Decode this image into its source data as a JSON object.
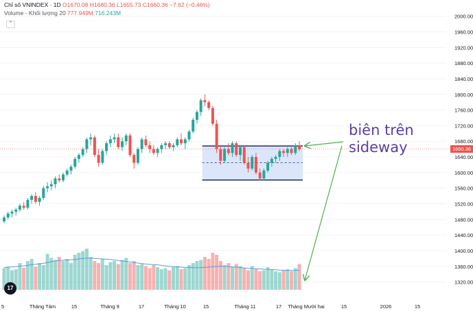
{
  "legend": {
    "symbol": "Chỉ số VNINDEX · 1D",
    "o": "O1670.08",
    "h": "H1680.36",
    "l": "L1655.73",
    "c": "C1660.36",
    "chg": "−7.62 (−0.46%)",
    "vol_label": "Volume - Khối lượng 20",
    "vol_value": "777.949M",
    "vol_ma": "716.243M"
  },
  "last_price": "1660.36",
  "annotation": {
    "line1": "biên trên",
    "line2": "sideway"
  },
  "colors": {
    "up": "#26a69a",
    "down": "#ef5350",
    "annotation": "#5b3fa3",
    "arrow": "#4caf50",
    "zone_fill": "#dbe6fb",
    "zone_border": "#1f2b6b",
    "ma": "#5b9bd5"
  },
  "chart_data": {
    "type": "candlestick",
    "price_axis": {
      "ticks": [
        1320,
        1360,
        1400,
        1440,
        1480,
        1520,
        1560,
        1600,
        1640,
        1680,
        1720,
        1760,
        1800,
        1840,
        1880,
        1920,
        1960,
        2000
      ]
    },
    "time_axis": {
      "labels": [
        "5",
        "Tháng Tám",
        "15",
        "Tháng 9",
        "17",
        "Tháng 10",
        "15",
        "Tháng 11",
        "17",
        "Tháng Mười hai",
        "15",
        "2026",
        "15"
      ]
    },
    "ylim": [
      1300,
      2010
    ],
    "zone": {
      "top": 1668,
      "bottom": 1581,
      "mid": 1625
    },
    "last_price": 1660.36,
    "candles": [
      [
        1475,
        1490,
        1470,
        1485
      ],
      [
        1485,
        1500,
        1480,
        1495
      ],
      [
        1495,
        1505,
        1485,
        1500
      ],
      [
        1500,
        1510,
        1490,
        1505
      ],
      [
        1505,
        1520,
        1500,
        1515
      ],
      [
        1515,
        1525,
        1505,
        1510
      ],
      [
        1510,
        1535,
        1505,
        1530
      ],
      [
        1530,
        1545,
        1520,
        1540
      ],
      [
        1540,
        1550,
        1520,
        1525
      ],
      [
        1525,
        1540,
        1515,
        1535
      ],
      [
        1535,
        1565,
        1530,
        1560
      ],
      [
        1560,
        1575,
        1550,
        1565
      ],
      [
        1565,
        1580,
        1555,
        1570
      ],
      [
        1570,
        1590,
        1560,
        1585
      ],
      [
        1585,
        1595,
        1575,
        1580
      ],
      [
        1580,
        1600,
        1575,
        1595
      ],
      [
        1595,
        1610,
        1590,
        1605
      ],
      [
        1605,
        1620,
        1595,
        1615
      ],
      [
        1615,
        1640,
        1610,
        1635
      ],
      [
        1635,
        1650,
        1625,
        1645
      ],
      [
        1645,
        1665,
        1640,
        1660
      ],
      [
        1660,
        1690,
        1650,
        1685
      ],
      [
        1685,
        1700,
        1670,
        1690
      ],
      [
        1690,
        1695,
        1640,
        1645
      ],
      [
        1645,
        1660,
        1615,
        1625
      ],
      [
        1625,
        1660,
        1620,
        1655
      ],
      [
        1655,
        1680,
        1645,
        1675
      ],
      [
        1675,
        1695,
        1665,
        1685
      ],
      [
        1685,
        1700,
        1675,
        1690
      ],
      [
        1690,
        1700,
        1660,
        1665
      ],
      [
        1665,
        1690,
        1655,
        1680
      ],
      [
        1680,
        1700,
        1670,
        1695
      ],
      [
        1695,
        1700,
        1640,
        1645
      ],
      [
        1645,
        1650,
        1610,
        1625
      ],
      [
        1625,
        1665,
        1620,
        1660
      ],
      [
        1660,
        1690,
        1650,
        1685
      ],
      [
        1685,
        1695,
        1665,
        1670
      ],
      [
        1670,
        1680,
        1650,
        1660
      ],
      [
        1660,
        1670,
        1645,
        1650
      ],
      [
        1650,
        1665,
        1640,
        1660
      ],
      [
        1660,
        1675,
        1650,
        1670
      ],
      [
        1670,
        1680,
        1660,
        1675
      ],
      [
        1675,
        1680,
        1660,
        1665
      ],
      [
        1665,
        1675,
        1655,
        1670
      ],
      [
        1670,
        1690,
        1665,
        1685
      ],
      [
        1685,
        1700,
        1670,
        1675
      ],
      [
        1675,
        1690,
        1660,
        1685
      ],
      [
        1685,
        1710,
        1680,
        1705
      ],
      [
        1705,
        1740,
        1700,
        1735
      ],
      [
        1735,
        1760,
        1725,
        1755
      ],
      [
        1755,
        1790,
        1745,
        1785
      ],
      [
        1785,
        1800,
        1770,
        1780
      ],
      [
        1780,
        1785,
        1760,
        1765
      ],
      [
        1765,
        1770,
        1720,
        1725
      ],
      [
        1725,
        1735,
        1650,
        1660
      ],
      [
        1660,
        1670,
        1620,
        1630
      ],
      [
        1630,
        1665,
        1625,
        1660
      ],
      [
        1660,
        1675,
        1645,
        1650
      ],
      [
        1650,
        1680,
        1640,
        1675
      ],
      [
        1675,
        1680,
        1640,
        1645
      ],
      [
        1645,
        1670,
        1630,
        1665
      ],
      [
        1665,
        1670,
        1620,
        1625
      ],
      [
        1625,
        1640,
        1600,
        1610
      ],
      [
        1610,
        1645,
        1605,
        1640
      ],
      [
        1640,
        1650,
        1595,
        1600
      ],
      [
        1600,
        1610,
        1580,
        1585
      ],
      [
        1585,
        1610,
        1580,
        1605
      ],
      [
        1605,
        1630,
        1600,
        1625
      ],
      [
        1625,
        1640,
        1615,
        1635
      ],
      [
        1635,
        1645,
        1625,
        1640
      ],
      [
        1640,
        1660,
        1630,
        1655
      ],
      [
        1655,
        1660,
        1640,
        1650
      ],
      [
        1650,
        1665,
        1640,
        1660
      ],
      [
        1660,
        1670,
        1645,
        1650
      ],
      [
        1650,
        1675,
        1645,
        1670
      ],
      [
        1670,
        1680,
        1655,
        1660
      ]
    ],
    "volumes": [
      420,
      450,
      380,
      400,
      520,
      430,
      560,
      600,
      450,
      520,
      480,
      700,
      620,
      580,
      640,
      560,
      600,
      520,
      680,
      720,
      750,
      800,
      640,
      560,
      520,
      600,
      480,
      540,
      560,
      500,
      580,
      620,
      520,
      560,
      480,
      500,
      460,
      420,
      480,
      440,
      400,
      420,
      380,
      440,
      460,
      400,
      420,
      480,
      520,
      560,
      580,
      640,
      600,
      720,
      680,
      560,
      480,
      520,
      440,
      500,
      460,
      420,
      380,
      460,
      400,
      360,
      380,
      440,
      400,
      360,
      340,
      380,
      400,
      360,
      420,
      500
    ],
    "volume_ma": [
      430,
      440,
      445,
      450,
      460,
      465,
      475,
      490,
      495,
      505,
      515,
      530,
      545,
      560,
      570,
      575,
      580,
      585,
      590,
      600,
      610,
      615,
      615,
      610,
      605,
      600,
      595,
      590,
      580,
      570,
      560,
      550,
      540,
      530,
      520,
      510,
      500,
      495,
      490,
      485,
      475,
      465,
      455,
      450,
      445,
      440,
      435,
      432,
      430,
      428,
      430,
      435,
      440,
      448,
      452,
      455,
      455,
      450,
      445,
      440,
      432,
      425,
      418,
      414,
      410,
      405,
      400,
      398,
      395,
      390,
      384,
      380,
      378,
      376,
      378,
      382
    ]
  }
}
